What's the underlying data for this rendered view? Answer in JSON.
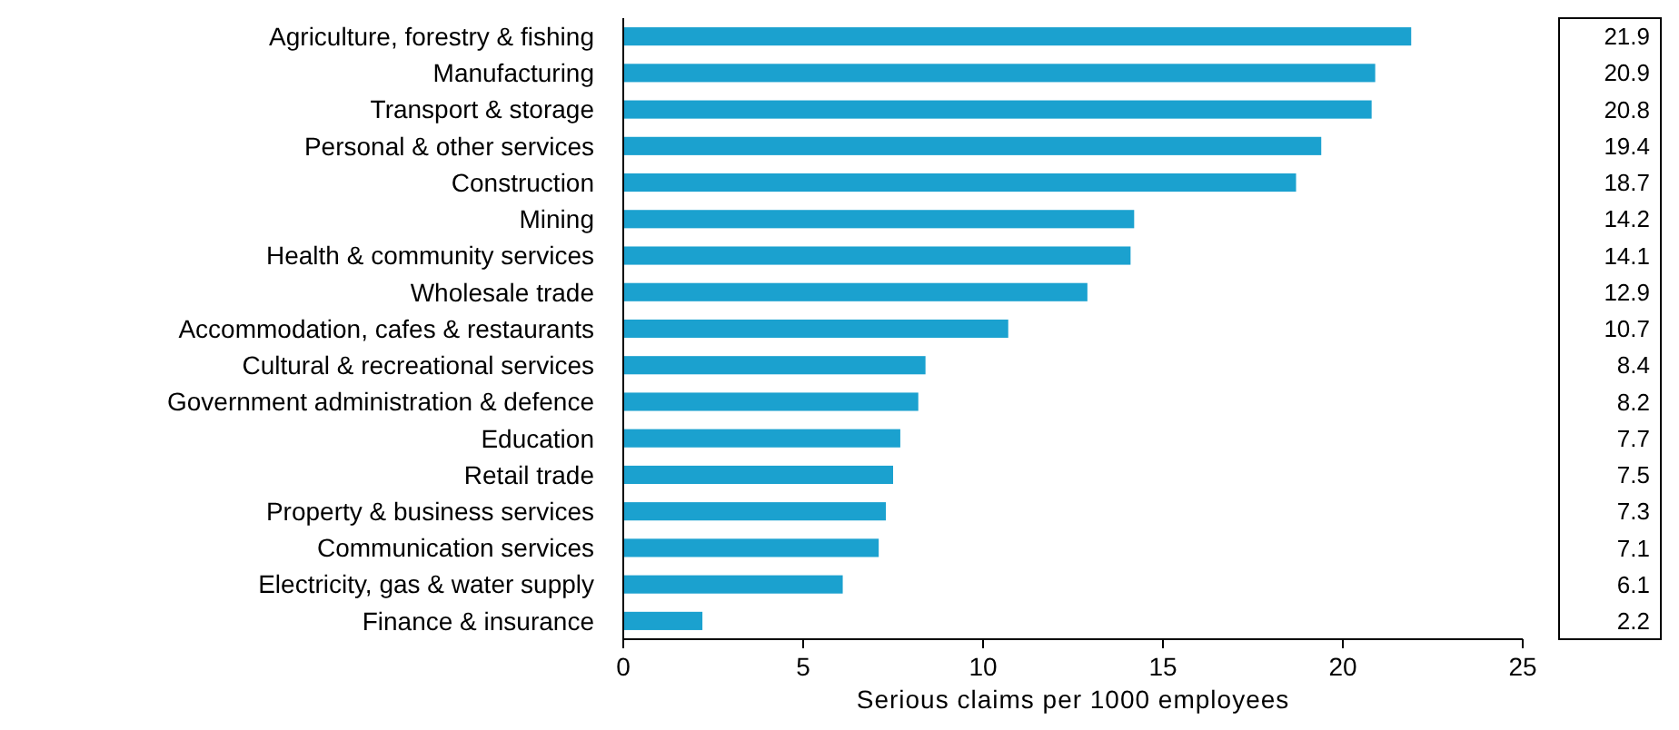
{
  "chart_data": {
    "type": "bar",
    "orientation": "horizontal",
    "xlabel": "Serious claims per 1000 employees",
    "categories": [
      "Agriculture, forestry & fishing",
      "Manufacturing",
      "Transport & storage",
      "Personal & other services",
      "Construction",
      "Mining",
      "Health & community services",
      "Wholesale trade",
      "Accommodation, cafes & restaurants",
      "Cultural & recreational services",
      "Government administration & defence",
      "Education",
      "Retail trade",
      "Property & business services",
      "Communication services",
      "Electricity, gas & water supply",
      "Finance & insurance"
    ],
    "values": [
      21.9,
      20.9,
      20.8,
      19.4,
      18.7,
      14.2,
      14.1,
      12.9,
      10.7,
      8.4,
      8.2,
      7.7,
      7.5,
      7.3,
      7.1,
      6.1,
      2.2
    ],
    "color": "#1ba1cf",
    "xlim": [
      0,
      25
    ],
    "xticks": [
      0,
      5,
      10,
      15,
      20,
      25
    ],
    "grid": false,
    "data_labels": true
  }
}
